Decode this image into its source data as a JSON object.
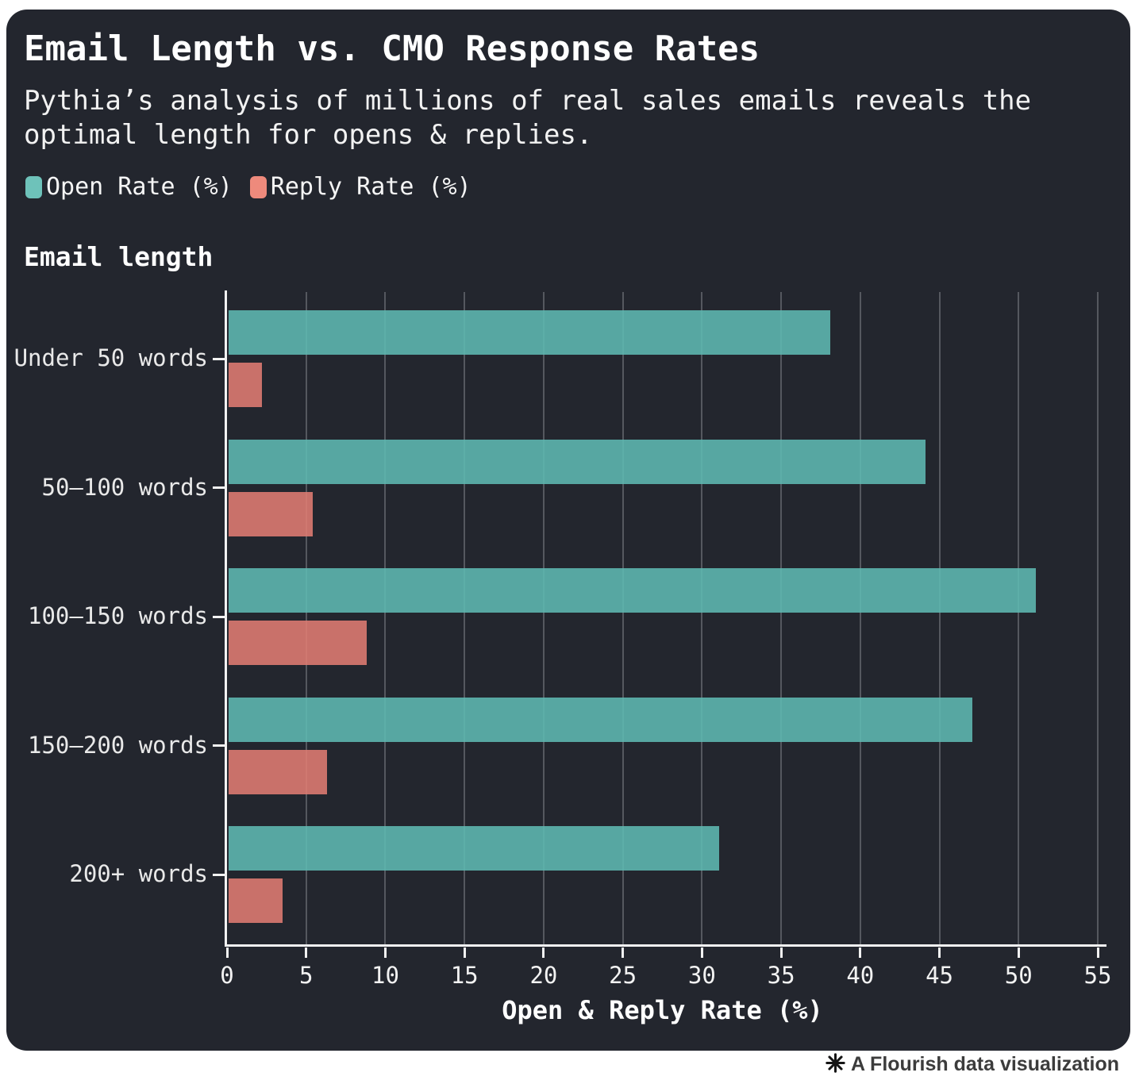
{
  "header": {
    "title": "Email Length vs. CMO Response Rates",
    "subtitle": "Pythia’s analysis of millions of real sales emails reveals the optimal length for opens & replies."
  },
  "legend": {
    "items": [
      {
        "label": "Open Rate (%)",
        "swatch_color": "#6ec2ba"
      },
      {
        "label": "Reply Rate (%)",
        "swatch_color": "#ee8a7c"
      }
    ]
  },
  "chart_data": {
    "type": "bar",
    "orientation": "horizontal",
    "group_title": "Email length",
    "categories": [
      "Under 50 words",
      "50–100 words",
      "100–150 words",
      "150–200 words",
      "200+ words"
    ],
    "series": [
      {
        "name": "Open Rate (%)",
        "color": "#5eb9b3",
        "values": [
          38,
          44,
          51,
          47,
          31
        ]
      },
      {
        "name": "Reply Rate (%)",
        "color": "#e07c73",
        "values": [
          2.1,
          5.3,
          8.7,
          6.2,
          3.4
        ]
      }
    ],
    "xlabel": "Open & Reply Rate (%)",
    "xlim": [
      0,
      55
    ],
    "xticks": [
      0,
      5,
      10,
      15,
      20,
      25,
      30,
      35,
      40,
      45,
      50,
      55
    ],
    "grid": true,
    "legend_position": "top-left",
    "bar_opacity": 0.88
  },
  "footer": {
    "label": "A Flourish data visualization"
  },
  "colors": {
    "page_bg": "#ffffff",
    "card_bg": "#23262e",
    "grid": "#55585f",
    "axis": "#f2f2f2",
    "title_text": "#ffffff",
    "footer_text": "#3c3c3c"
  }
}
